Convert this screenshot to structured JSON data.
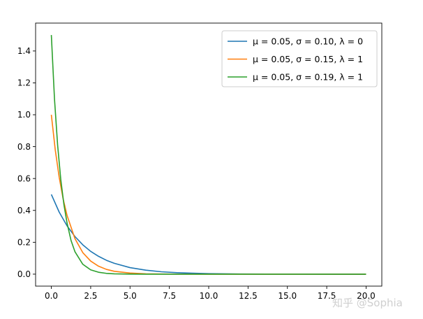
{
  "chart_data": {
    "type": "line",
    "title": "",
    "xlabel": "",
    "ylabel": "",
    "xlim": [
      -1.0,
      21.0
    ],
    "ylim": [
      -0.075,
      1.575
    ],
    "xticks": [
      0.0,
      2.5,
      5.0,
      7.5,
      10.0,
      12.5,
      15.0,
      17.5,
      20.0
    ],
    "xtick_labels": [
      "0.0",
      "2.5",
      "5.0",
      "7.5",
      "10.0",
      "12.5",
      "15.0",
      "17.5",
      "20.0"
    ],
    "yticks": [
      0.0,
      0.2,
      0.4,
      0.6,
      0.8,
      1.0,
      1.2,
      1.4
    ],
    "ytick_labels": [
      "0.0",
      "0.2",
      "0.4",
      "0.6",
      "0.8",
      "1.0",
      "1.2",
      "1.4"
    ],
    "grid": false,
    "legend_position": "top-right",
    "series": [
      {
        "name": "μ = 0.05,  σ = 0.10,  λ = 0",
        "color": "#1f77b4",
        "x": [
          0,
          0.5,
          1,
          1.5,
          2,
          2.5,
          3,
          3.5,
          4,
          5,
          6,
          7,
          8,
          9,
          10,
          12,
          14,
          16,
          18,
          20
        ],
        "y": [
          0.5,
          0.389,
          0.303,
          0.236,
          0.184,
          0.143,
          0.112,
          0.087,
          0.068,
          0.041,
          0.025,
          0.015,
          0.009,
          0.006,
          0.003,
          0.001,
          0.0005,
          0.0002,
          0.0001,
          0.0
        ]
      },
      {
        "name": "μ = 0.05,  σ = 0.15,  λ = 1",
        "color": "#ff7f0e",
        "x": [
          0,
          0.25,
          0.5,
          0.75,
          1,
          1.5,
          2,
          2.5,
          3,
          3.5,
          4,
          5,
          6,
          7,
          8,
          10,
          12,
          15,
          20
        ],
        "y": [
          1.0,
          0.779,
          0.607,
          0.472,
          0.368,
          0.223,
          0.135,
          0.082,
          0.05,
          0.03,
          0.018,
          0.007,
          0.002,
          0.001,
          0.0003,
          0.0,
          0.0,
          0.0,
          0.0
        ]
      },
      {
        "name": "μ = 0.05,  σ = 0.19,  λ = 1",
        "color": "#2ca02c",
        "x": [
          0,
          0.2,
          0.4,
          0.6,
          0.8,
          1,
          1.25,
          1.5,
          2,
          2.5,
          3,
          3.5,
          4,
          5,
          6,
          8,
          10,
          15,
          20
        ],
        "y": [
          1.5,
          1.1,
          0.809,
          0.594,
          0.436,
          0.32,
          0.212,
          0.141,
          0.062,
          0.027,
          0.012,
          0.005,
          0.002,
          0.0005,
          0.0001,
          0.0,
          0.0,
          0.0,
          0.0
        ]
      }
    ]
  },
  "watermark": {
    "text": "知乎 @Sophia"
  }
}
